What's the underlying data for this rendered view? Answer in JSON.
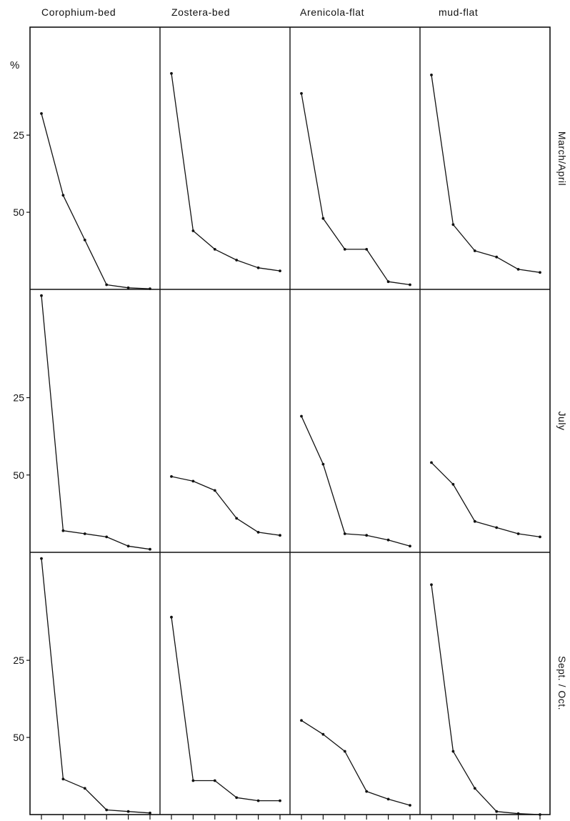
{
  "colors": {
    "line": "#111111",
    "background": "#ffffff"
  },
  "y_unit_label": "%",
  "y_tick_labels": [
    "50",
    "25"
  ],
  "column_labels": [
    "Corophium-bed",
    "Zostera-bed",
    "Arenicola-flat",
    "mud-flat"
  ],
  "row_labels": [
    "March/April",
    "July",
    "Sept. / Oct."
  ],
  "chart_data": {
    "type": "line",
    "layout": "small-multiples grid, 3 rows x 4 columns",
    "ylabel": "%",
    "ylim": [
      0,
      85
    ],
    "y_ticks": [
      25,
      50
    ],
    "x_points": 6,
    "panels": [
      {
        "row": "March/April",
        "column": "Corophium-bed",
        "values": [
          57,
          30.5,
          16,
          1.5,
          0.5,
          0.2
        ]
      },
      {
        "row": "March/April",
        "column": "Zostera-bed",
        "values": [
          70,
          19,
          13,
          9.5,
          7,
          6
        ]
      },
      {
        "row": "March/April",
        "column": "Arenicola-flat",
        "values": [
          63.5,
          23,
          13,
          13,
          2.5,
          1.5
        ]
      },
      {
        "row": "March/April",
        "column": "mud-flat",
        "values": [
          69.5,
          21,
          12.5,
          10.5,
          6.5,
          5.5
        ]
      },
      {
        "row": "July",
        "column": "Corophium-bed",
        "values": [
          83,
          7,
          6,
          5,
          2,
          1
        ]
      },
      {
        "row": "July",
        "column": "Zostera-bed",
        "values": [
          24.5,
          23,
          20,
          11,
          6.5,
          5.5
        ]
      },
      {
        "row": "July",
        "column": "Arenicola-flat",
        "values": [
          44,
          28.5,
          6,
          5.5,
          4,
          2
        ]
      },
      {
        "row": "July",
        "column": "mud-flat",
        "values": [
          29,
          22,
          10,
          8,
          6,
          5
        ]
      },
      {
        "row": "Sept. / Oct.",
        "column": "Corophium-bed",
        "values": [
          83,
          11.5,
          8.5,
          1.5,
          1,
          0.5
        ]
      },
      {
        "row": "Sept. / Oct.",
        "column": "Zostera-bed",
        "values": [
          64,
          11,
          11,
          5.5,
          4.5,
          4.5
        ]
      },
      {
        "row": "Sept. / Oct.",
        "column": "Arenicola-flat",
        "values": [
          30.5,
          26,
          20.5,
          7.5,
          5,
          3
        ]
      },
      {
        "row": "Sept. / Oct.",
        "column": "mud-flat",
        "values": [
          74.5,
          20.5,
          8.5,
          1,
          0.3,
          0
        ]
      }
    ]
  }
}
